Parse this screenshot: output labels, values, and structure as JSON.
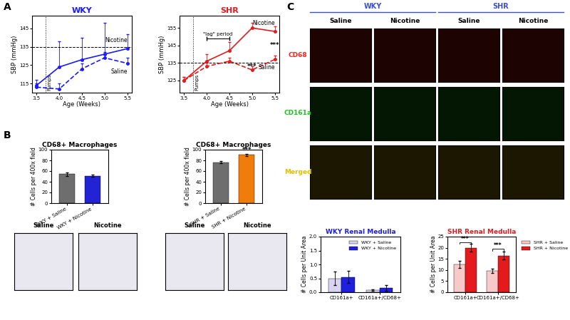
{
  "panel_labels": [
    "A",
    "B",
    "C"
  ],
  "chart_data": [
    {
      "type": "line",
      "title": "WKY",
      "x": [
        3.5,
        4,
        4.5,
        5,
        5.5
      ],
      "xlim": [
        3.4,
        5.6
      ],
      "xticks": [
        3.5,
        {
          "value": 4,
          "label": "4.0"
        },
        4.5,
        {
          "value": 5,
          "label": "5.0"
        },
        5.5
      ],
      "ylim": [
        110,
        152
      ],
      "yticks": [
        115,
        125,
        135,
        145
      ],
      "x_label": "Age (Weeks)",
      "y_label": "SBP (mmHg)",
      "threshold": 135,
      "series": [
        {
          "name": "Nicotine",
          "color": "#1a1aff",
          "line_style": "solid",
          "marker": "o",
          "values": [
            114,
            124,
            128,
            131,
            134
          ],
          "errors": [
            3,
            14,
            12,
            17,
            8
          ]
        },
        {
          "name": "Saline",
          "color": "#1a1aff",
          "line_style": "dashed",
          "marker": "o",
          "values": [
            113,
            112,
            123,
            129,
            126
          ],
          "errors": [
            2,
            3,
            3,
            3,
            3
          ]
        }
      ],
      "annotations": [
        {
          "text": "Pumps",
          "x": 3.7
        }
      ]
    },
    {
      "type": "line",
      "title": "SHR",
      "x": [
        3.5,
        4,
        4.5,
        5,
        5.5
      ],
      "xlim": [
        3.4,
        5.6
      ],
      "xticks": [
        3.5,
        {
          "value": 4,
          "label": "4.0"
        },
        4.5,
        {
          "value": 5,
          "label": "5.0"
        },
        5.5
      ],
      "ylim": [
        118,
        162
      ],
      "yticks": [
        125,
        135,
        145,
        155
      ],
      "x_label": "Age (Weeks)",
      "y_label": "SBP (mmHg)",
      "threshold": 135,
      "series": [
        {
          "name": "Nicotine",
          "color": "#e41a1c",
          "line_style": "solid",
          "marker": "o",
          "values": [
            125,
            136,
            142,
            155,
            153
          ],
          "errors": [
            2,
            4,
            5,
            3,
            3
          ]
        },
        {
          "name": "Saline",
          "color": "#e41a1c",
          "line_style": "dashed",
          "marker": "o",
          "values": [
            125,
            133,
            136,
            131,
            137
          ],
          "errors": [
            2,
            2,
            2,
            2,
            2
          ]
        }
      ],
      "annotations": [
        {
          "text": "Pumps",
          "x": 3.7
        },
        {
          "text": "\"lag\" period",
          "x": [
            4.0,
            4.5
          ],
          "y": 149
        },
        {
          "text": "***",
          "x": 5.0,
          "y": 133
        },
        {
          "text": "***",
          "x": 5.5,
          "y": 145
        }
      ]
    },
    {
      "type": "bar",
      "title": "CD68+ Macrophages",
      "categories": [
        "WKY + Saline",
        "WKY + Nicotine"
      ],
      "values": [
        54,
        51
      ],
      "errors": [
        3,
        2
      ],
      "colors": [
        "#6e6e6e",
        "#2323d6"
      ],
      "ylim": [
        0,
        100
      ],
      "yticks": [
        0,
        20,
        40,
        60,
        80,
        100
      ],
      "y_label": "# Cells per 400x field",
      "annotations": []
    },
    {
      "type": "bar",
      "title": "CD68+ Macrophages",
      "categories": [
        "SHR + Saline",
        "SHR + Nicotine"
      ],
      "values": [
        76,
        90
      ],
      "errors": [
        2,
        2
      ],
      "colors": [
        "#6e6e6e",
        "#f07d0a"
      ],
      "ylim": [
        0,
        100
      ],
      "yticks": [
        0,
        20,
        40,
        60,
        80,
        100
      ],
      "y_label": "# Cells per 400x field",
      "annotations": [
        {
          "text": "***",
          "category": "SHR + Nicotine",
          "y": 93
        }
      ]
    },
    {
      "type": "bar",
      "title": "WKY Renal Medulla",
      "categories": [
        "CD161a+",
        "CD161a+/CD68+"
      ],
      "series": [
        {
          "name": "WKY + Saline",
          "color": "#d9d2f0",
          "values": [
            0.5,
            0.08
          ],
          "errors": [
            0.25,
            0.03
          ]
        },
        {
          "name": "WKY + Nicotine",
          "color": "#1f1fe0",
          "values": [
            0.55,
            0.15
          ],
          "errors": [
            0.22,
            0.1
          ]
        }
      ],
      "ylim": [
        0,
        2
      ],
      "yticks": [
        {
          "value": 0,
          "label": "0.0"
        },
        0.5,
        {
          "value": 1,
          "label": "1.0"
        },
        1.5,
        {
          "value": 2,
          "label": "2.0"
        }
      ],
      "y_label": "# Cells per Unit Area",
      "legend": "upper right",
      "annotations": []
    },
    {
      "type": "bar",
      "title": "SHR Renal Medulla",
      "categories": [
        "CD161a+",
        "CD161a+/CD68+"
      ],
      "series": [
        {
          "name": "SHR + Saline",
          "color": "#f8c9c9",
          "values": [
            12.5,
            9.5
          ],
          "errors": [
            1.5,
            1.0
          ]
        },
        {
          "name": "SHR + Nicotine",
          "color": "#e41a1c",
          "values": [
            20,
            16.5
          ],
          "errors": [
            1.8,
            1.8
          ]
        }
      ],
      "ylim": [
        0,
        25
      ],
      "yticks": [
        0,
        5,
        10,
        15,
        20,
        25
      ],
      "y_label": "# Cells per Unit Area",
      "legend": "upper left",
      "annotations": [
        {
          "text": "***",
          "category": "CD161a+",
          "y": 22.5
        },
        {
          "text": "***",
          "category": "CD161a+/CD68+",
          "y": 19.5
        }
      ]
    }
  ],
  "micrographs": {
    "B": [
      [
        "Saline",
        "Nicotine"
      ],
      [
        "Saline",
        "Nicotine"
      ]
    ],
    "C": {
      "groups": [
        {
          "name": "WKY",
          "color": "#3b4fd6"
        },
        {
          "name": "SHR",
          "color": "#3b4fd6"
        }
      ],
      "columns": [
        "Saline",
        "Nicotine"
      ],
      "rows": [
        {
          "name": "CD68",
          "color": "#ff2020"
        },
        {
          "name": "CD161a",
          "color": "#20c020"
        },
        {
          "name": "Merged",
          "color": "#e0c000"
        }
      ]
    }
  }
}
